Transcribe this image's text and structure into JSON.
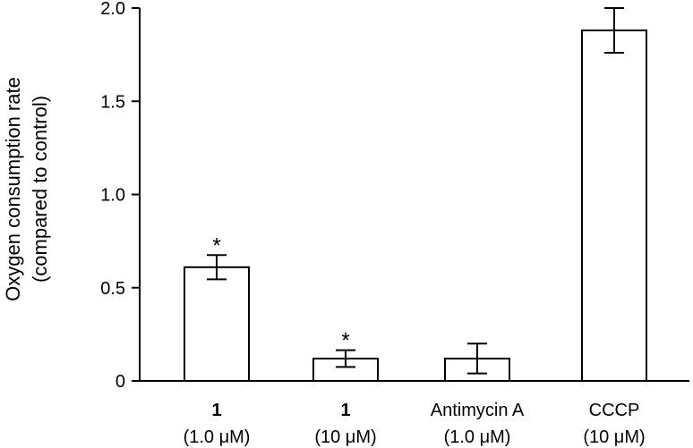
{
  "chart_data": {
    "type": "bar",
    "ylabel_line1": "Oxygen consumption rate",
    "ylabel_line2": "(compared to control)",
    "ylim": [
      0,
      2.0
    ],
    "yticks": [
      {
        "value": 0,
        "label": "0"
      },
      {
        "value": 0.5,
        "label": "0.5"
      },
      {
        "value": 1.0,
        "label": "1.0"
      },
      {
        "value": 1.5,
        "label": "1.5"
      },
      {
        "value": 2.0,
        "label": "2.0"
      }
    ],
    "categories": [
      {
        "name": "1",
        "name_bold": true,
        "conc": "(1.0 μM)"
      },
      {
        "name": "1",
        "name_bold": true,
        "conc": "(10 μM)"
      },
      {
        "name": "Antimycin A",
        "name_bold": false,
        "conc": "(1.0 μM)"
      },
      {
        "name": "CCCP",
        "name_bold": false,
        "conc": "(10 μM)"
      }
    ],
    "values": [
      0.61,
      0.12,
      0.12,
      1.88
    ],
    "errors": [
      0.065,
      0.045,
      0.08,
      0.12
    ],
    "significance": [
      "*",
      "*",
      "",
      ""
    ],
    "bar_fill": "#ffffff",
    "bar_stroke": "#000000",
    "grid": false
  }
}
